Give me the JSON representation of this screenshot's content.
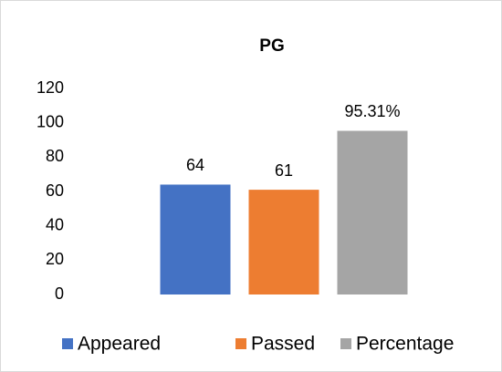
{
  "chart_data": {
    "type": "bar",
    "title": "PG",
    "categories": [
      null
    ],
    "series": [
      {
        "name": "Appeared",
        "color": "#4472c4",
        "values": [
          64
        ]
      },
      {
        "name": "Passed",
        "color": "#ed7d31",
        "values": [
          61
        ]
      },
      {
        "name": "Percentage",
        "color": "#a5a5a5",
        "values": [
          95.31
        ],
        "value_labels": [
          "95.31%"
        ]
      }
    ],
    "ylim": [
      0,
      120
    ],
    "yticks": [
      0,
      20,
      40,
      60,
      80,
      100,
      120
    ],
    "grid": false,
    "legend": "bottom"
  }
}
